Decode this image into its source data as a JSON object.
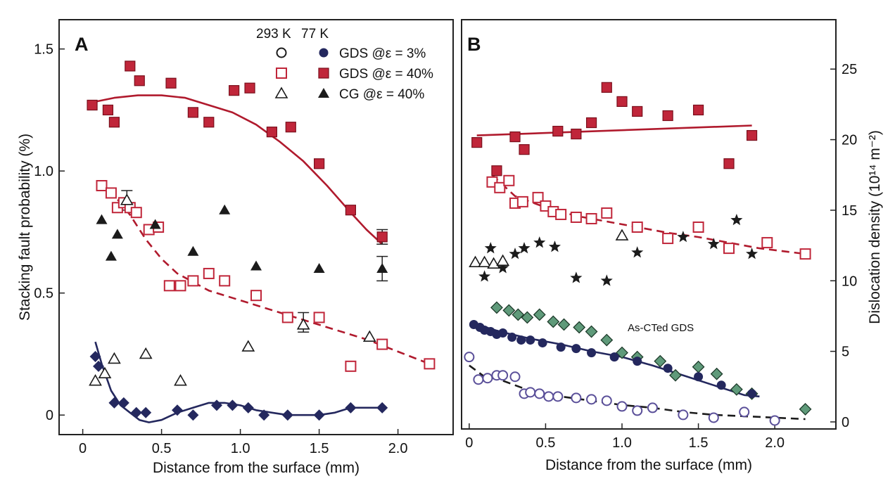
{
  "colors": {
    "red_fill": "#c0263a",
    "red_edge": "#7a0f1c",
    "red_line": "#b01a2d",
    "navy": "#24285e",
    "purple": "#5a4f99",
    "green": "#5f9a7a",
    "black": "#1b1b1b"
  },
  "legend": {
    "header_293": "293 K",
    "header_77": "77 K",
    "rows": [
      "GDS @ε = 3%",
      "GDS @ε = 40%",
      "CG @ε = 40%"
    ]
  },
  "chart_data": [
    {
      "type": "scatter",
      "panel": "A",
      "xlabel": "Distance from the surface (mm)",
      "ylabel": "Stacking fault probability (%)",
      "xlim": [
        -0.15,
        2.35
      ],
      "ylim": [
        -0.08,
        1.62
      ],
      "xticks": [
        0,
        0.5,
        1.0,
        1.5,
        2.0
      ],
      "xtick_labels": [
        "0",
        "0.5",
        "1.0",
        "1.5",
        "2.0"
      ],
      "yticks": [
        0,
        0.5,
        1.0,
        1.5
      ],
      "ytick_labels": [
        "0",
        "0.5",
        "1.0",
        "1.5"
      ],
      "series": [
        {
          "name": "GDS @ε = 40%, 77 K",
          "marker": "square-filled",
          "color": "#c0263a",
          "x": [
            0.06,
            0.16,
            0.2,
            0.3,
            0.36,
            0.56,
            0.7,
            0.8,
            0.96,
            1.06,
            1.2,
            1.32,
            1.5,
            1.7,
            1.9
          ],
          "y": [
            1.27,
            1.25,
            1.2,
            1.43,
            1.37,
            1.36,
            1.24,
            1.2,
            1.33,
            1.34,
            1.16,
            1.18,
            1.03,
            0.84,
            0.73
          ]
        },
        {
          "name": "GDS @ε = 40%, 293 K",
          "marker": "square-open",
          "color": "#c0263a",
          "x": [
            0.12,
            0.18,
            0.22,
            0.26,
            0.3,
            0.34,
            0.42,
            0.48,
            0.55,
            0.62,
            0.7,
            0.8,
            0.9,
            1.1,
            1.3,
            1.5,
            1.7,
            1.9,
            2.2
          ],
          "y": [
            0.94,
            0.91,
            0.85,
            0.87,
            0.85,
            0.83,
            0.76,
            0.77,
            0.53,
            0.53,
            0.55,
            0.58,
            0.55,
            0.49,
            0.4,
            0.4,
            0.2,
            0.29,
            0.21
          ]
        },
        {
          "name": "CG @ε = 40%, 77 K",
          "marker": "triangle-filled",
          "color": "#1b1b1b",
          "x": [
            0.12,
            0.18,
            0.22,
            0.46,
            0.7,
            0.9,
            1.1,
            1.5,
            1.9
          ],
          "y": [
            0.8,
            0.65,
            0.74,
            0.78,
            0.67,
            0.84,
            0.61,
            0.6,
            0.6
          ]
        },
        {
          "name": "CG @ε = 40%, 293 K",
          "marker": "triangle-open",
          "color": "#1b1b1b",
          "x": [
            0.08,
            0.14,
            0.2,
            0.28,
            0.4,
            0.62,
            1.05,
            1.4,
            1.82
          ],
          "y": [
            0.14,
            0.17,
            0.23,
            0.88,
            0.25,
            0.14,
            0.28,
            0.37,
            0.32
          ]
        },
        {
          "name": "GDS @ε = 3%, 77 K",
          "marker": "diamond-filled",
          "color": "#24285e",
          "x": [
            0.08,
            0.1,
            0.2,
            0.26,
            0.34,
            0.4,
            0.6,
            0.7,
            0.85,
            0.95,
            1.05,
            1.15,
            1.3,
            1.5,
            1.7,
            1.9
          ],
          "y": [
            0.24,
            0.2,
            0.05,
            0.05,
            0.01,
            0.01,
            0.02,
            0.0,
            0.04,
            0.04,
            0.03,
            0.0,
            0.0,
            0.0,
            0.03,
            0.03
          ]
        }
      ],
      "fit_lines": [
        {
          "style": "solid",
          "color": "#b01a2d",
          "x": [
            0.05,
            0.2,
            0.35,
            0.5,
            0.65,
            0.8,
            0.95,
            1.1,
            1.25,
            1.4,
            1.55,
            1.7,
            1.8,
            1.9
          ],
          "y": [
            1.28,
            1.3,
            1.31,
            1.31,
            1.3,
            1.27,
            1.24,
            1.19,
            1.12,
            1.04,
            0.94,
            0.83,
            0.76,
            0.7
          ]
        },
        {
          "style": "dashed",
          "color": "#b01a2d",
          "x": [
            0.1,
            0.2,
            0.3,
            0.4,
            0.5,
            0.6,
            0.8,
            1.0,
            1.2,
            1.4,
            1.6,
            1.8,
            2.0,
            2.2
          ],
          "y": [
            0.95,
            0.9,
            0.82,
            0.72,
            0.64,
            0.58,
            0.51,
            0.47,
            0.43,
            0.39,
            0.35,
            0.31,
            0.26,
            0.21
          ]
        },
        {
          "style": "solid",
          "color": "#24285e",
          "x": [
            0.08,
            0.12,
            0.18,
            0.24,
            0.3,
            0.36,
            0.42,
            0.5,
            0.6,
            0.7,
            0.8,
            0.9,
            1.0,
            1.1,
            1.2,
            1.3,
            1.4,
            1.5,
            1.6,
            1.7,
            1.8,
            1.9
          ],
          "y": [
            0.3,
            0.21,
            0.1,
            0.04,
            0.01,
            -0.02,
            -0.03,
            -0.02,
            0.01,
            0.03,
            0.05,
            0.05,
            0.04,
            0.02,
            0.01,
            0.0,
            0.0,
            0.0,
            0.01,
            0.03,
            0.03,
            0.03
          ]
        }
      ],
      "error_bars": [
        {
          "x": 0.28,
          "y": 0.88,
          "err": 0.04
        },
        {
          "x": 1.4,
          "y": 0.38,
          "err": 0.04
        },
        {
          "x": 1.9,
          "y": 0.6,
          "err": 0.05
        },
        {
          "x": 1.9,
          "y": 0.73,
          "err": 0.03
        }
      ]
    },
    {
      "type": "scatter",
      "panel": "B",
      "xlabel": "Distance from the surface (mm)",
      "ylabel": "Dislocation density (10¹⁴ m⁻²)",
      "xlim": [
        -0.05,
        2.4
      ],
      "ylim": [
        -0.5,
        28.5
      ],
      "xticks": [
        0,
        0.5,
        1.0,
        1.5,
        2.0
      ],
      "xtick_labels": [
        "0",
        "0.5",
        "1.0",
        "1.5",
        "2.0"
      ],
      "yticks": [
        0,
        5,
        10,
        15,
        20,
        25
      ],
      "ytick_labels": [
        "0",
        "5",
        "10",
        "15",
        "20",
        "25"
      ],
      "annotation": "As-CTed GDS",
      "series": [
        {
          "name": "GDS @ε = 40%, 77 K",
          "marker": "square-filled",
          "color": "#c0263a",
          "x": [
            0.05,
            0.18,
            0.3,
            0.36,
            0.58,
            0.7,
            0.8,
            0.9,
            1.0,
            1.1,
            1.3,
            1.5,
            1.7,
            1.85
          ],
          "y": [
            19.8,
            17.8,
            20.2,
            19.3,
            20.6,
            20.4,
            21.2,
            23.7,
            22.7,
            22.0,
            21.7,
            22.1,
            18.3,
            20.3
          ]
        },
        {
          "name": "GDS @ε = 40%, 293 K",
          "marker": "square-open",
          "color": "#c0263a",
          "x": [
            0.15,
            0.2,
            0.26,
            0.3,
            0.35,
            0.45,
            0.5,
            0.55,
            0.6,
            0.7,
            0.8,
            0.9,
            1.1,
            1.3,
            1.5,
            1.7,
            1.95,
            2.2
          ],
          "y": [
            17.0,
            16.6,
            17.1,
            15.5,
            15.6,
            15.9,
            15.3,
            14.9,
            14.7,
            14.5,
            14.4,
            14.8,
            13.8,
            13.0,
            13.8,
            12.3,
            12.7,
            11.9
          ]
        },
        {
          "name": "CG @ε = 40%, 77 K",
          "marker": "star-filled",
          "color": "#1b1b1b",
          "x": [
            0.1,
            0.14,
            0.22,
            0.3,
            0.36,
            0.46,
            0.56,
            0.7,
            0.9,
            1.1,
            1.4,
            1.6,
            1.75,
            1.85
          ],
          "y": [
            10.3,
            12.3,
            10.9,
            11.9,
            12.3,
            12.7,
            12.4,
            10.2,
            10.0,
            12.0,
            13.1,
            12.6,
            14.3,
            11.9
          ]
        },
        {
          "name": "CG @ε = 40%, 293 K",
          "marker": "triangle-open",
          "color": "#1b1b1b",
          "x": [
            0.04,
            0.1,
            0.16,
            0.22,
            1.0
          ],
          "y": [
            11.3,
            11.3,
            11.2,
            11.4,
            13.2
          ]
        },
        {
          "name": "As-CTed GDS",
          "marker": "diamond-green",
          "color": "#5f9a7a",
          "x": [
            0.18,
            0.26,
            0.32,
            0.38,
            0.46,
            0.55,
            0.62,
            0.72,
            0.8,
            0.9,
            1.0,
            1.1,
            1.25,
            1.35,
            1.5,
            1.62,
            1.75,
            1.85,
            2.2
          ],
          "y": [
            8.1,
            7.9,
            7.6,
            7.4,
            7.6,
            7.1,
            6.9,
            6.7,
            6.4,
            5.8,
            4.9,
            4.6,
            4.3,
            3.3,
            3.9,
            3.4,
            2.3,
            2.0,
            0.9
          ]
        },
        {
          "name": "GDS @ε = 3%, 77 K",
          "marker": "circle-filled",
          "color": "#24285e",
          "x": [
            0.03,
            0.07,
            0.1,
            0.14,
            0.18,
            0.22,
            0.28,
            0.34,
            0.4,
            0.48,
            0.6,
            0.7,
            0.8,
            0.95,
            1.1,
            1.3,
            1.5,
            1.65,
            1.85
          ],
          "y": [
            6.9,
            6.7,
            6.5,
            6.4,
            6.2,
            6.3,
            6.0,
            5.8,
            5.8,
            5.6,
            5.3,
            5.2,
            4.9,
            4.6,
            4.3,
            3.8,
            3.2,
            2.6,
            2.0
          ]
        },
        {
          "name": "GDS @ε = 3%, 293 K",
          "marker": "circle-open",
          "color": "#5a4f99",
          "x": [
            0.0,
            0.06,
            0.12,
            0.18,
            0.22,
            0.3,
            0.36,
            0.4,
            0.46,
            0.52,
            0.58,
            0.7,
            0.8,
            0.9,
            1.0,
            1.1,
            1.2,
            1.4,
            1.6,
            1.8,
            2.0
          ],
          "y": [
            4.6,
            3.0,
            3.1,
            3.3,
            3.3,
            3.2,
            2.0,
            2.1,
            2.0,
            1.8,
            1.8,
            1.7,
            1.6,
            1.5,
            1.1,
            0.8,
            1.0,
            0.5,
            0.3,
            0.7,
            0.1
          ]
        }
      ],
      "fit_lines": [
        {
          "style": "solid",
          "color": "#b01a2d",
          "x": [
            0.05,
            1.85
          ],
          "y": [
            20.3,
            21.0
          ]
        },
        {
          "style": "dashed",
          "color": "#b01a2d",
          "x": [
            0.15,
            0.3,
            0.5,
            0.7,
            0.9,
            1.1,
            1.3,
            1.5,
            1.7,
            1.9,
            2.2
          ],
          "y": [
            17.5,
            16.0,
            15.2,
            14.6,
            14.2,
            13.8,
            13.4,
            13.1,
            12.7,
            12.3,
            11.9
          ]
        },
        {
          "style": "solid",
          "color": "#24285e",
          "x": [
            0.05,
            0.2,
            0.4,
            0.6,
            0.8,
            1.0,
            1.2,
            1.4,
            1.6,
            1.8,
            1.9
          ],
          "y": [
            6.9,
            6.4,
            5.9,
            5.5,
            5.0,
            4.6,
            4.0,
            3.3,
            2.6,
            1.9,
            1.8
          ]
        },
        {
          "style": "dashed",
          "color": "#1b1b1b",
          "x": [
            0.0,
            0.1,
            0.2,
            0.3,
            0.4,
            0.6,
            0.8,
            1.0,
            1.2,
            1.4,
            1.6,
            1.8,
            2.0,
            2.2
          ],
          "y": [
            4.0,
            3.2,
            3.0,
            2.6,
            2.2,
            1.8,
            1.5,
            1.2,
            1.0,
            0.7,
            0.5,
            0.4,
            0.3,
            0.2
          ]
        }
      ]
    }
  ]
}
